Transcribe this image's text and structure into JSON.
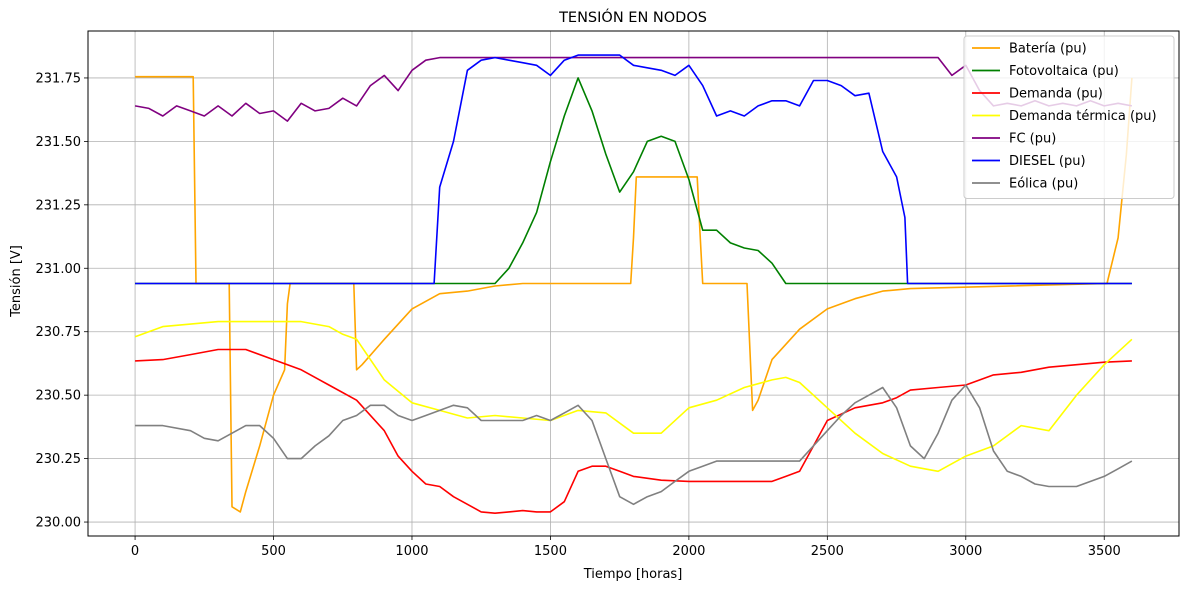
{
  "chart_data": {
    "type": "line",
    "title": "TENSIÓN EN NODOS",
    "xlabel": "Tiempo [horas]",
    "ylabel": "Tensión [V]",
    "xlim": [
      -170,
      3770
    ],
    "ylim": [
      229.945,
      231.935
    ],
    "xticks": [
      0,
      500,
      1000,
      1500,
      2000,
      2500,
      3000,
      3500
    ],
    "yticks": [
      230.0,
      230.25,
      230.5,
      230.75,
      231.0,
      231.25,
      231.5,
      231.75
    ],
    "xtick_labels": [
      "0",
      "500",
      "1000",
      "1500",
      "2000",
      "2500",
      "3000",
      "3500"
    ],
    "ytick_labels": [
      "230.00",
      "230.25",
      "230.50",
      "230.75",
      "231.00",
      "231.25",
      "231.50",
      "231.75"
    ],
    "grid": true,
    "legend_position": "top-right",
    "series": [
      {
        "name": "Batería (pu)",
        "color": "#ffa500",
        "x": [
          0,
          210,
          220,
          340,
          350,
          380,
          400,
          450,
          500,
          540,
          550,
          560,
          790,
          800,
          820,
          900,
          1000,
          1100,
          1200,
          1300,
          1400,
          1500,
          1600,
          1700,
          1790,
          1800,
          1810,
          2030,
          2040,
          2050,
          2210,
          2230,
          2250,
          2300,
          2400,
          2500,
          2600,
          2700,
          2800,
          3510,
          3550,
          3580,
          3600
        ],
        "y": [
          231.755,
          231.755,
          230.94,
          230.94,
          230.06,
          230.04,
          230.12,
          230.3,
          230.5,
          230.6,
          230.86,
          230.94,
          230.94,
          230.6,
          230.62,
          230.72,
          230.84,
          230.9,
          230.91,
          230.93,
          230.94,
          230.94,
          230.94,
          230.94,
          230.94,
          231.12,
          231.36,
          231.36,
          231.14,
          230.94,
          230.94,
          230.44,
          230.48,
          230.64,
          230.76,
          230.84,
          230.88,
          230.91,
          230.92,
          230.94,
          231.12,
          231.45,
          231.75
        ]
      },
      {
        "name": "Fotovoltaica (pu)",
        "color": "#008000",
        "x": [
          0,
          1300,
          1350,
          1400,
          1450,
          1500,
          1550,
          1600,
          1650,
          1700,
          1750,
          1800,
          1850,
          1900,
          1950,
          2000,
          2050,
          2100,
          2150,
          2200,
          2250,
          2300,
          2350,
          2400,
          3600
        ],
        "y": [
          230.94,
          230.94,
          231.0,
          231.1,
          231.22,
          231.42,
          231.6,
          231.75,
          231.62,
          231.45,
          231.3,
          231.38,
          231.5,
          231.52,
          231.5,
          231.35,
          231.15,
          231.15,
          231.1,
          231.08,
          231.07,
          231.02,
          230.94,
          230.94,
          230.94
        ]
      },
      {
        "name": "Demanda (pu)",
        "color": "#ff0000",
        "x": [
          0,
          100,
          200,
          300,
          400,
          500,
          600,
          700,
          800,
          900,
          950,
          1000,
          1050,
          1100,
          1150,
          1200,
          1250,
          1300,
          1350,
          1400,
          1450,
          1500,
          1550,
          1600,
          1650,
          1700,
          1750,
          1800,
          1900,
          2000,
          2100,
          2200,
          2300,
          2350,
          2400,
          2450,
          2500,
          2600,
          2700,
          2750,
          2800,
          2900,
          3000,
          3100,
          3200,
          3300,
          3400,
          3500,
          3600
        ],
        "y": [
          230.635,
          230.64,
          230.66,
          230.68,
          230.68,
          230.64,
          230.6,
          230.54,
          230.48,
          230.36,
          230.26,
          230.2,
          230.15,
          230.14,
          230.1,
          230.07,
          230.04,
          230.035,
          230.04,
          230.045,
          230.04,
          230.04,
          230.08,
          230.2,
          230.22,
          230.22,
          230.2,
          230.18,
          230.165,
          230.16,
          230.16,
          230.16,
          230.16,
          230.18,
          230.2,
          230.3,
          230.4,
          230.45,
          230.47,
          230.49,
          230.52,
          230.53,
          230.54,
          230.58,
          230.59,
          230.61,
          230.62,
          230.63,
          230.635
        ]
      },
      {
        "name": "Demanda térmica (pu)",
        "color": "#ffff00",
        "x": [
          0,
          100,
          200,
          300,
          400,
          500,
          600,
          700,
          750,
          800,
          900,
          1000,
          1100,
          1200,
          1300,
          1400,
          1500,
          1600,
          1700,
          1800,
          1900,
          2000,
          2100,
          2200,
          2300,
          2350,
          2400,
          2500,
          2600,
          2700,
          2800,
          2900,
          3000,
          3100,
          3200,
          3300,
          3400,
          3500,
          3600
        ],
        "y": [
          230.73,
          230.77,
          230.78,
          230.79,
          230.79,
          230.79,
          230.79,
          230.77,
          230.74,
          230.72,
          230.56,
          230.47,
          230.44,
          230.41,
          230.42,
          230.41,
          230.4,
          230.44,
          230.43,
          230.35,
          230.35,
          230.45,
          230.48,
          230.53,
          230.56,
          230.57,
          230.55,
          230.45,
          230.35,
          230.27,
          230.22,
          230.2,
          230.26,
          230.3,
          230.38,
          230.36,
          230.5,
          230.62,
          230.72
        ]
      },
      {
        "name": "FC (pu)",
        "color": "#800080",
        "x": [
          0,
          50,
          100,
          150,
          200,
          250,
          300,
          350,
          400,
          450,
          500,
          550,
          600,
          650,
          700,
          750,
          800,
          850,
          900,
          950,
          1000,
          1050,
          1100,
          1150,
          1200,
          2900,
          2950,
          3000,
          3050,
          3100,
          3150,
          3200,
          3250,
          3300,
          3350,
          3400,
          3450,
          3500,
          3550,
          3600
        ],
        "y": [
          231.64,
          231.63,
          231.6,
          231.64,
          231.62,
          231.6,
          231.64,
          231.6,
          231.65,
          231.61,
          231.62,
          231.58,
          231.65,
          231.62,
          231.63,
          231.67,
          231.64,
          231.72,
          231.76,
          231.7,
          231.78,
          231.82,
          231.83,
          231.83,
          231.83,
          231.83,
          231.76,
          231.8,
          231.7,
          231.64,
          231.65,
          231.64,
          231.66,
          231.64,
          231.65,
          231.64,
          231.66,
          231.64,
          231.65,
          231.64
        ]
      },
      {
        "name": "DIESEL (pu)",
        "color": "#0000ff",
        "x": [
          0,
          1080,
          1100,
          1150,
          1200,
          1250,
          1300,
          1350,
          1400,
          1450,
          1500,
          1550,
          1600,
          1650,
          1700,
          1750,
          1800,
          1850,
          1900,
          1950,
          2000,
          2050,
          2100,
          2150,
          2200,
          2250,
          2300,
          2350,
          2400,
          2450,
          2500,
          2550,
          2600,
          2650,
          2700,
          2750,
          2780,
          2790,
          3600
        ],
        "y": [
          230.94,
          230.94,
          231.32,
          231.5,
          231.78,
          231.82,
          231.83,
          231.82,
          231.81,
          231.8,
          231.76,
          231.82,
          231.84,
          231.84,
          231.84,
          231.84,
          231.8,
          231.79,
          231.78,
          231.76,
          231.8,
          231.72,
          231.6,
          231.62,
          231.6,
          231.64,
          231.66,
          231.66,
          231.64,
          231.74,
          231.74,
          231.72,
          231.68,
          231.69,
          231.46,
          231.36,
          231.2,
          230.94,
          230.94
        ]
      },
      {
        "name": "Eólica (pu)",
        "color": "#808080",
        "x": [
          0,
          100,
          200,
          250,
          300,
          350,
          400,
          450,
          500,
          550,
          600,
          650,
          700,
          750,
          800,
          850,
          900,
          950,
          1000,
          1050,
          1100,
          1150,
          1200,
          1250,
          1300,
          1350,
          1400,
          1450,
          1500,
          1550,
          1600,
          1650,
          1700,
          1750,
          1800,
          1850,
          1900,
          1950,
          2000,
          2050,
          2100,
          2200,
          2300,
          2400,
          2500,
          2550,
          2600,
          2650,
          2700,
          2750,
          2800,
          2850,
          2900,
          2950,
          3000,
          3050,
          3100,
          3150,
          3200,
          3250,
          3300,
          3400,
          3500,
          3550,
          3600
        ],
        "y": [
          230.38,
          230.38,
          230.36,
          230.33,
          230.32,
          230.35,
          230.38,
          230.38,
          230.33,
          230.25,
          230.25,
          230.3,
          230.34,
          230.4,
          230.42,
          230.46,
          230.46,
          230.42,
          230.4,
          230.42,
          230.44,
          230.46,
          230.45,
          230.4,
          230.4,
          230.4,
          230.4,
          230.42,
          230.4,
          230.43,
          230.46,
          230.4,
          230.25,
          230.1,
          230.07,
          230.1,
          230.12,
          230.16,
          230.2,
          230.22,
          230.24,
          230.24,
          230.24,
          230.24,
          230.36,
          230.42,
          230.47,
          230.5,
          230.53,
          230.45,
          230.3,
          230.25,
          230.35,
          230.48,
          230.54,
          230.45,
          230.28,
          230.2,
          230.18,
          230.15,
          230.14,
          230.14,
          230.18,
          230.21,
          230.24
        ]
      }
    ]
  }
}
